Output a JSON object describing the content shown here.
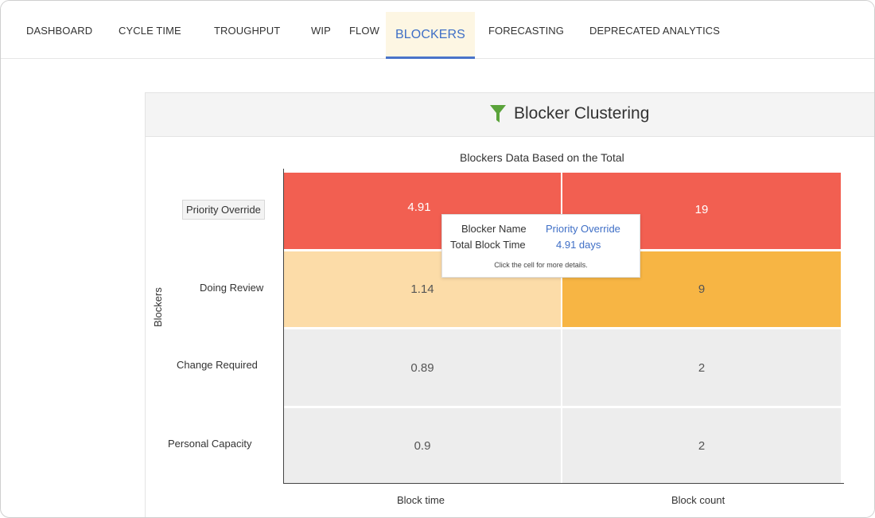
{
  "nav": {
    "tabs": [
      {
        "label": "DASHBOARD",
        "active": false
      },
      {
        "label": "CYCLE TIME",
        "active": false
      },
      {
        "label": "TROUGHPUT",
        "active": false
      },
      {
        "label": "WIP",
        "active": false
      },
      {
        "label": "FLOW",
        "active": false
      },
      {
        "label": "BLOCKERS",
        "active": true
      },
      {
        "label": "FORECASTING",
        "active": false
      },
      {
        "label": "DEPRECATED ANALYTICS",
        "active": false
      }
    ]
  },
  "panel": {
    "title": "Blocker Clustering",
    "icon": "filter-icon"
  },
  "chart_data": {
    "type": "heatmap",
    "title": "Blockers Data Based on the Total",
    "ylabel": "Blockers",
    "xlabel": "",
    "columns": [
      "Block time",
      "Block count"
    ],
    "rows": [
      "Priority Override",
      "Doing Review",
      "Change Required",
      "Personal Capacity"
    ],
    "values": [
      [
        "4.91",
        "19"
      ],
      [
        "1.14",
        "9"
      ],
      [
        "0.89",
        "2"
      ],
      [
        "0.9",
        "2"
      ]
    ],
    "colors": [
      [
        "#f25f51",
        "#f25f51"
      ],
      [
        "#fcdca8",
        "#f7b544"
      ],
      [
        "#ededed",
        "#ededed"
      ],
      [
        "#ededed",
        "#ededed"
      ]
    ],
    "highlighted_row": "Priority Override"
  },
  "tooltip": {
    "name_key": "Blocker Name",
    "name_value": "Priority Override",
    "time_key": "Total Block Time",
    "time_value": "4.91 days",
    "hint": "Click the cell for more details."
  }
}
